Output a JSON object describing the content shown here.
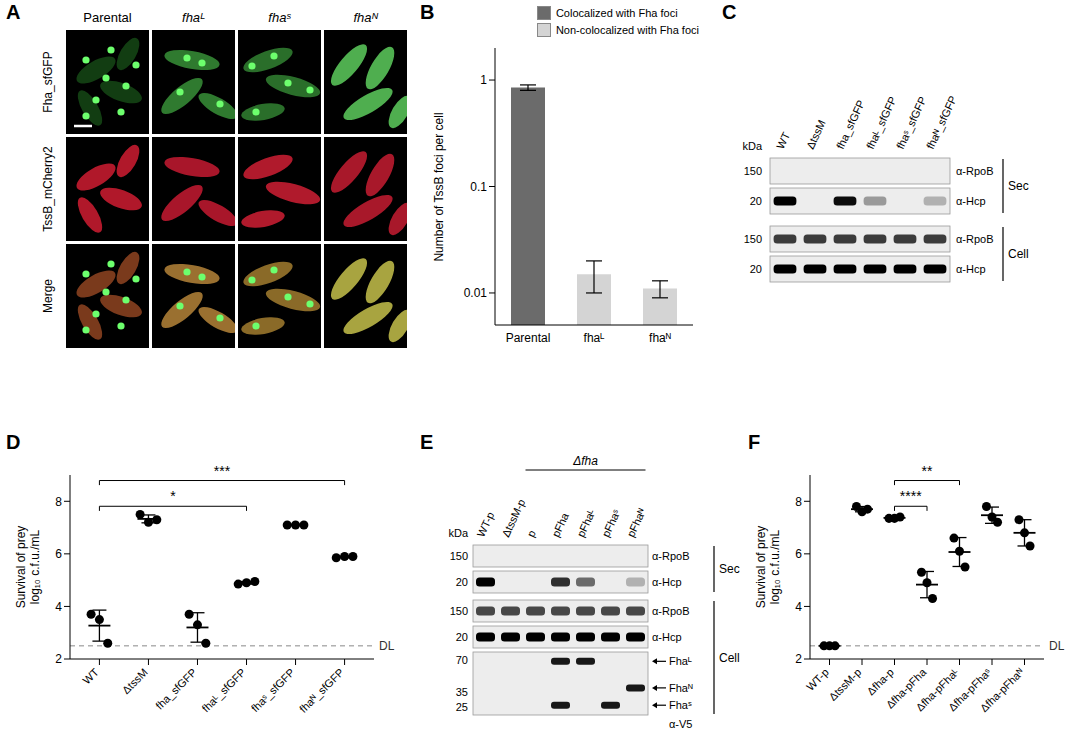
{
  "chart_data": [
    {
      "panel": "B",
      "type": "bar",
      "categories": [
        "Parental",
        "fhaᴸ",
        "fhaᴺ"
      ],
      "series": [
        {
          "name": "Colocalized with Fha foci",
          "color": "#6b6b6b",
          "values": [
            0.85,
            null,
            null
          ],
          "errors": [
            0.05,
            null,
            null
          ]
        },
        {
          "name": "Non-colocalized with Fha foci",
          "color": "#d4d4d4",
          "values": [
            null,
            0.015,
            0.011
          ],
          "errors": [
            null,
            0.005,
            0.002
          ]
        }
      ],
      "ylabel": "Number of TssB foci per cell",
      "log": "y",
      "ylim": [
        0.005,
        2
      ],
      "yticks": [
        0.01,
        0.1,
        1
      ],
      "legend": "top-right"
    },
    {
      "panel": "D",
      "type": "dot",
      "categories": [
        "WT",
        "ΔtssM",
        "fha_sfGFP",
        "fhaᴸ_sfGFP",
        "fhaˢ_sfGFP",
        "fhaᴺ_sfGFP"
      ],
      "values": [
        [
          3.7,
          3.5,
          2.6
        ],
        [
          7.5,
          7.2,
          7.3
        ],
        [
          3.7,
          3.3,
          2.6
        ],
        [
          4.85,
          4.9,
          4.95
        ],
        [
          7.1,
          7.1,
          7.1
        ],
        [
          5.85,
          5.9,
          5.9
        ]
      ],
      "means": [
        3.27,
        7.33,
        3.2,
        4.9,
        7.1,
        5.88
      ],
      "errors": [
        0.59,
        0.15,
        0.56,
        0.05,
        0.02,
        0.03
      ],
      "ylabel": [
        "Survival of prey",
        "log₁₀ c.f.u./mL"
      ],
      "ylim": [
        2,
        9
      ],
      "yticks": [
        2,
        4,
        6,
        8
      ],
      "color": "#000000",
      "marker": "circle",
      "reference_line": {
        "value": 2.5,
        "label": "DL",
        "line_style": "dashed"
      },
      "significance": [
        {
          "from": 0,
          "to": 3,
          "label": "*"
        },
        {
          "from": 0,
          "to": 5,
          "label": "***"
        }
      ]
    },
    {
      "panel": "F",
      "type": "dot",
      "categories": [
        "WT-p",
        "ΔtssM-p",
        "Δfha-p",
        "Δfha-pFha",
        "Δfha-pFhaᴸ",
        "Δfha-pFhaˢ",
        "Δfha-pFhaᴺ"
      ],
      "values": [
        [
          2.5,
          2.5,
          2.5
        ],
        [
          7.8,
          7.6,
          7.7
        ],
        [
          7.35,
          7.35,
          7.4
        ],
        [
          5.3,
          4.9,
          4.3
        ],
        [
          6.6,
          6.1,
          5.5
        ],
        [
          7.8,
          7.4,
          7.2
        ],
        [
          7.3,
          6.8,
          6.3
        ]
      ],
      "means": [
        2.5,
        7.7,
        7.37,
        4.83,
        6.07,
        7.47,
        6.8
      ],
      "errors": [
        0,
        0.1,
        0.03,
        0.5,
        0.55,
        0.31,
        0.5
      ],
      "ylabel": [
        "Survival of prey",
        "log₁₀ c.f.u./mL"
      ],
      "ylim": [
        2,
        9
      ],
      "yticks": [
        2,
        4,
        6,
        8
      ],
      "color": "#000000",
      "marker": "circle",
      "reference_line": {
        "value": 2.5,
        "label": "DL",
        "line_style": "dashed"
      },
      "significance": [
        {
          "from": 2,
          "to": 3,
          "label": "****"
        },
        {
          "from": 2,
          "to": 4,
          "label": "**"
        }
      ]
    }
  ],
  "panel_A": {
    "panel": "A",
    "columns": [
      "Parental",
      "fhaᴸ",
      "fhaˢ",
      "fhaᴺ"
    ],
    "rows": [
      "Fha_sfGFP",
      "TssB_mCherry2",
      "Merge"
    ]
  },
  "panel_C": {
    "panel": "C",
    "unit": "kDa",
    "lanes": [
      "WT",
      "ΔtssM",
      "fha_sfGFP",
      "fhaᴸ_sfGFP",
      "fhaˢ_sfGFP",
      "fhaᴺ_sfGFP"
    ],
    "rows": [
      {
        "marker": 150,
        "antibody": "α-RpoB",
        "bands": [
          0,
          0,
          0,
          0,
          0,
          0
        ]
      },
      {
        "marker": 20,
        "antibody": "α-Hcp",
        "bands": [
          1,
          0,
          0.95,
          0.35,
          0,
          0.25
        ]
      },
      {
        "marker": 150,
        "antibody": "α-RpoB",
        "bands": [
          0.75,
          0.75,
          0.75,
          0.75,
          0.75,
          0.75
        ]
      },
      {
        "marker": 20,
        "antibody": "α-Hcp",
        "bands": [
          1,
          1,
          1,
          1,
          1,
          1
        ]
      }
    ],
    "groups": [
      {
        "label": "Sec",
        "rows": [
          0,
          1
        ]
      },
      {
        "label": "Cell",
        "rows": [
          2,
          3
        ]
      }
    ]
  },
  "panel_E": {
    "panel": "E",
    "unit": "kDa",
    "lanes": [
      "WT-p",
      "ΔtssM-p",
      "p",
      "pFha",
      "pFhaᴸ",
      "pFhaˢ",
      "pFhaᴺ"
    ],
    "lane_group": {
      "label": "Δfha",
      "from": 2,
      "to": 6
    },
    "rows": [
      {
        "marker": 150,
        "antibody": "α-RpoB",
        "bands": [
          0,
          0,
          0,
          0,
          0,
          0,
          0
        ]
      },
      {
        "marker": 20,
        "antibody": "α-Hcp",
        "bands": [
          1,
          0,
          0,
          0.8,
          0.55,
          0,
          0.25
        ]
      },
      {
        "marker": 150,
        "antibody": "α-RpoB",
        "bands": [
          0.7,
          0.7,
          0.7,
          0.7,
          0.7,
          0.7,
          0.7
        ]
      },
      {
        "marker": 20,
        "antibody": "α-Hcp",
        "bands": [
          1,
          1,
          1,
          1,
          1,
          1,
          1
        ]
      },
      {
        "antibody": "α-V5",
        "markers": [
          70,
          35,
          25
        ],
        "products": [
          {
            "label": "Fhaᴸ",
            "kda": 68,
            "bands": [
              0,
              0,
              0,
              0.9,
              0.9,
              0,
              0
            ]
          },
          {
            "label": "Fhaᴺ",
            "kda": 38,
            "bands": [
              0,
              0,
              0,
              0,
              0,
              0,
              0.9
            ]
          },
          {
            "label": "Fhaˢ",
            "kda": 26,
            "bands": [
              0,
              0,
              0,
              0.9,
              0,
              0.9,
              0
            ]
          }
        ]
      }
    ],
    "groups": [
      {
        "label": "Sec",
        "rows": [
          0,
          1
        ]
      },
      {
        "label": "Cell",
        "rows": [
          2,
          3,
          4
        ]
      }
    ]
  }
}
